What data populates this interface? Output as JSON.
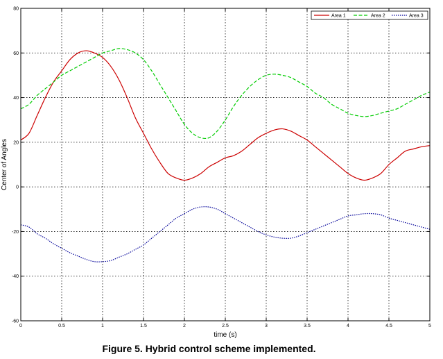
{
  "caption": "Figure 5. Hybrid control scheme implemented.",
  "chart_data": {
    "type": "line",
    "title": "",
    "xlabel": "time (s)",
    "ylabel": "Center of Angles",
    "xlim": [
      0,
      5
    ],
    "ylim": [
      -60,
      80
    ],
    "xticks": [
      0,
      0.5,
      1,
      1.5,
      2,
      2.5,
      3,
      3.5,
      4,
      4.5,
      5
    ],
    "xtick_labels": [
      "0",
      "0.5",
      "1",
      "1.5",
      "2",
      "2.5",
      "3",
      "3.5",
      "4",
      "4.5",
      "5"
    ],
    "yticks": [
      -60,
      -40,
      -20,
      0,
      20,
      40,
      60,
      80
    ],
    "ytick_labels": [
      "-60",
      "-40",
      "-20",
      "0",
      "20",
      "40",
      "60",
      "80"
    ],
    "grid": true,
    "legend_position": "top-right",
    "series": [
      {
        "name": "Area 1",
        "color": "#cc0000",
        "style": "solid",
        "x": [
          0,
          0.1,
          0.2,
          0.3,
          0.4,
          0.5,
          0.6,
          0.7,
          0.8,
          0.9,
          1.0,
          1.1,
          1.2,
          1.3,
          1.4,
          1.5,
          1.6,
          1.7,
          1.8,
          1.9,
          2.0,
          2.1,
          2.2,
          2.3,
          2.4,
          2.5,
          2.6,
          2.7,
          2.8,
          2.9,
          3.0,
          3.1,
          3.2,
          3.3,
          3.4,
          3.5,
          3.6,
          3.7,
          3.8,
          3.9,
          4.0,
          4.1,
          4.2,
          4.3,
          4.4,
          4.5,
          4.6,
          4.7,
          4.8,
          4.9,
          5.0
        ],
        "y": [
          21,
          24,
          32,
          40,
          47,
          52,
          57,
          60,
          61,
          60,
          58,
          54,
          48,
          40,
          31,
          24,
          17,
          11,
          6,
          4,
          3,
          4,
          6,
          9,
          11,
          13,
          14,
          16,
          19,
          22,
          24,
          25.5,
          26,
          25,
          23,
          21,
          18,
          15,
          12,
          9,
          6,
          4,
          3,
          4,
          6,
          10,
          13,
          16,
          17,
          18,
          18.5
        ]
      },
      {
        "name": "Area 2",
        "color": "#00cc00",
        "style": "dashed",
        "x": [
          0,
          0.1,
          0.2,
          0.3,
          0.4,
          0.5,
          0.6,
          0.7,
          0.8,
          0.9,
          1.0,
          1.1,
          1.2,
          1.3,
          1.4,
          1.5,
          1.6,
          1.7,
          1.8,
          1.9,
          2.0,
          2.1,
          2.2,
          2.3,
          2.4,
          2.5,
          2.6,
          2.7,
          2.8,
          2.9,
          3.0,
          3.1,
          3.2,
          3.3,
          3.4,
          3.5,
          3.6,
          3.7,
          3.8,
          3.9,
          4.0,
          4.1,
          4.2,
          4.3,
          4.4,
          4.5,
          4.6,
          4.7,
          4.8,
          4.9,
          5.0
        ],
        "y": [
          35,
          37,
          41,
          44,
          47,
          50,
          52,
          54,
          56,
          58,
          60,
          61,
          62,
          61.5,
          60,
          57,
          52,
          46,
          40,
          34,
          28,
          24,
          22,
          22,
          25,
          30,
          36,
          41,
          45,
          48,
          50,
          50.5,
          50,
          49,
          47,
          45,
          42,
          40,
          37,
          35,
          33,
          32,
          31.5,
          32,
          33,
          34,
          35,
          37,
          39,
          41,
          42.5
        ]
      },
      {
        "name": "Area 3",
        "color": "#000099",
        "style": "dotted",
        "x": [
          0,
          0.1,
          0.2,
          0.3,
          0.4,
          0.5,
          0.6,
          0.7,
          0.8,
          0.9,
          1.0,
          1.1,
          1.2,
          1.3,
          1.4,
          1.5,
          1.6,
          1.7,
          1.8,
          1.9,
          2.0,
          2.1,
          2.2,
          2.3,
          2.4,
          2.5,
          2.6,
          2.7,
          2.8,
          2.9,
          3.0,
          3.1,
          3.2,
          3.3,
          3.4,
          3.5,
          3.6,
          3.7,
          3.8,
          3.9,
          4.0,
          4.1,
          4.2,
          4.3,
          4.4,
          4.5,
          4.6,
          4.7,
          4.8,
          4.9,
          5.0
        ],
        "y": [
          -17,
          -18,
          -21,
          -23,
          -25.5,
          -27.5,
          -29.5,
          -31,
          -32.5,
          -33.5,
          -33.5,
          -33,
          -31.5,
          -30,
          -28,
          -26,
          -23,
          -20,
          -17,
          -14,
          -12,
          -10,
          -9,
          -9,
          -10,
          -12,
          -14,
          -16,
          -18,
          -20,
          -21.5,
          -22.5,
          -23,
          -23,
          -22,
          -20.5,
          -19,
          -17.5,
          -16,
          -14.5,
          -13,
          -12.5,
          -12,
          -12,
          -12.5,
          -14,
          -15,
          -16,
          -17,
          -18,
          -19
        ]
      }
    ]
  }
}
